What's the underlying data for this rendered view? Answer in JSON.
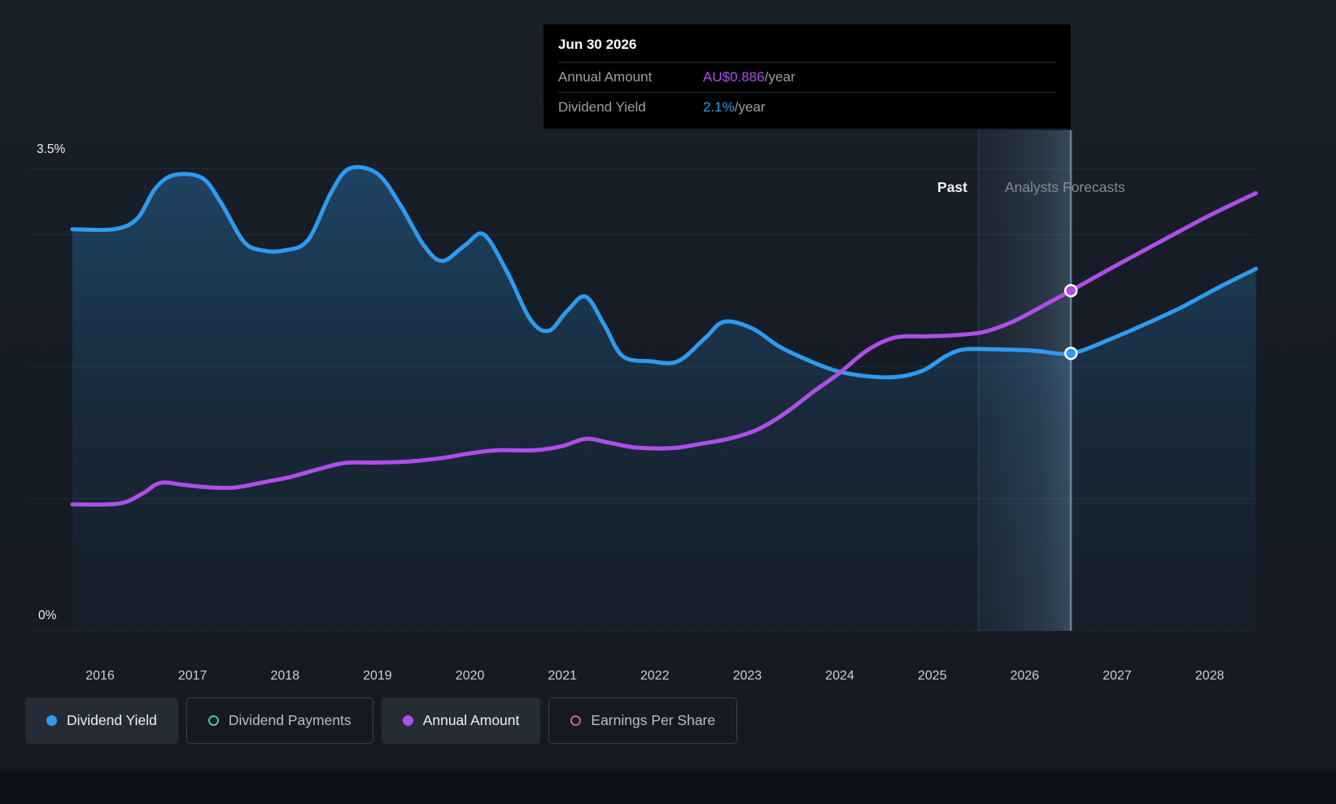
{
  "colors": {
    "background": "#161b23",
    "tooltip-bg": "#000000",
    "blue": "#2e9bf0",
    "purple": "#ae4fe8",
    "teal": "#45c8ba",
    "pink": "#e2559e",
    "text-primary": "#f0f3f5",
    "text-secondary": "#9aa0a8",
    "grid": "rgba(255,255,255,0.07)"
  },
  "tooltip": {
    "date": "Jun 30 2026",
    "rows": [
      {
        "label": "Annual Amount",
        "value": "AU$0.886",
        "suffix": "/year",
        "color_key": "purple"
      },
      {
        "label": "Dividend Yield",
        "value": "2.1%",
        "suffix": "/year",
        "color_key": "blue"
      }
    ]
  },
  "axis": {
    "y_top": "3.5%",
    "y_bottom": "0%"
  },
  "sections": {
    "past_label": "Past",
    "forecast_label": "Analysts Forecasts"
  },
  "legend": [
    {
      "label": "Dividend Yield",
      "marker": "filled",
      "color_key": "blue",
      "active": true
    },
    {
      "label": "Dividend Payments",
      "marker": "outline",
      "color_key": "teal",
      "active": false
    },
    {
      "label": "Annual Amount",
      "marker": "filled",
      "color_key": "purple",
      "active": true
    },
    {
      "label": "Earnings Per Share",
      "marker": "outline",
      "color_key": "pink",
      "active": false
    }
  ],
  "chart_data": {
    "type": "line",
    "x_range": [
      2015.7,
      2028.5
    ],
    "x_ticks": [
      2016,
      2017,
      2018,
      2019,
      2020,
      2021,
      2022,
      2023,
      2024,
      2025,
      2026,
      2027,
      2028
    ],
    "y_axis": {
      "unit": "%",
      "min": 0,
      "max": 3.5,
      "gridlines": [
        0,
        1,
        2,
        3,
        3.5
      ],
      "labeled_ticks": [
        "3.5%",
        "0%"
      ]
    },
    "past_until": 2025.5,
    "hover_x": 2026.5,
    "hover_date": "Jun 30 2026",
    "legend_position": "bottom",
    "series": [
      {
        "name": "Dividend Yield",
        "unit": "%",
        "color": "#2e9bf0",
        "area": true,
        "points": [
          [
            2015.7,
            3.04
          ],
          [
            2016.15,
            3.04
          ],
          [
            2016.4,
            3.12
          ],
          [
            2016.6,
            3.35
          ],
          [
            2016.8,
            3.45
          ],
          [
            2017.1,
            3.43
          ],
          [
            2017.3,
            3.25
          ],
          [
            2017.55,
            2.95
          ],
          [
            2017.75,
            2.88
          ],
          [
            2018.0,
            2.88
          ],
          [
            2018.25,
            2.96
          ],
          [
            2018.5,
            3.32
          ],
          [
            2018.7,
            3.5
          ],
          [
            2019.0,
            3.46
          ],
          [
            2019.25,
            3.22
          ],
          [
            2019.5,
            2.92
          ],
          [
            2019.7,
            2.8
          ],
          [
            2019.95,
            2.92
          ],
          [
            2020.15,
            3.0
          ],
          [
            2020.4,
            2.72
          ],
          [
            2020.65,
            2.36
          ],
          [
            2020.85,
            2.27
          ],
          [
            2021.05,
            2.42
          ],
          [
            2021.25,
            2.53
          ],
          [
            2021.45,
            2.32
          ],
          [
            2021.65,
            2.08
          ],
          [
            2021.95,
            2.04
          ],
          [
            2022.25,
            2.04
          ],
          [
            2022.55,
            2.22
          ],
          [
            2022.75,
            2.34
          ],
          [
            2023.05,
            2.29
          ],
          [
            2023.35,
            2.15
          ],
          [
            2023.65,
            2.05
          ],
          [
            2023.95,
            1.97
          ],
          [
            2024.25,
            1.93
          ],
          [
            2024.6,
            1.92
          ],
          [
            2024.9,
            1.97
          ],
          [
            2025.15,
            2.08
          ],
          [
            2025.35,
            2.13
          ],
          [
            2025.7,
            2.13
          ],
          [
            2026.1,
            2.12
          ],
          [
            2026.5,
            2.1
          ],
          [
            2026.9,
            2.2
          ],
          [
            2027.3,
            2.32
          ],
          [
            2027.7,
            2.45
          ],
          [
            2028.1,
            2.6
          ],
          [
            2028.5,
            2.74
          ]
        ]
      },
      {
        "name": "Annual Amount",
        "unit": "AU$ per year",
        "color": "#ae4fe8",
        "area": false,
        "pct_scale": 2.906,
        "points": [
          [
            2015.7,
            0.329
          ],
          [
            2016.2,
            0.331
          ],
          [
            2016.45,
            0.356
          ],
          [
            2016.65,
            0.385
          ],
          [
            2016.9,
            0.38
          ],
          [
            2017.15,
            0.374
          ],
          [
            2017.45,
            0.373
          ],
          [
            2017.75,
            0.386
          ],
          [
            2018.05,
            0.4
          ],
          [
            2018.35,
            0.42
          ],
          [
            2018.65,
            0.437
          ],
          [
            2019.0,
            0.438
          ],
          [
            2019.35,
            0.441
          ],
          [
            2019.7,
            0.45
          ],
          [
            2020.0,
            0.462
          ],
          [
            2020.3,
            0.47
          ],
          [
            2020.7,
            0.47
          ],
          [
            2021.0,
            0.481
          ],
          [
            2021.25,
            0.5
          ],
          [
            2021.5,
            0.49
          ],
          [
            2021.8,
            0.477
          ],
          [
            2022.2,
            0.476
          ],
          [
            2022.5,
            0.487
          ],
          [
            2022.8,
            0.5
          ],
          [
            2023.1,
            0.523
          ],
          [
            2023.4,
            0.565
          ],
          [
            2023.7,
            0.62
          ],
          [
            2024.0,
            0.672
          ],
          [
            2024.3,
            0.731
          ],
          [
            2024.6,
            0.764
          ],
          [
            2024.95,
            0.767
          ],
          [
            2025.25,
            0.77
          ],
          [
            2025.55,
            0.778
          ],
          [
            2025.85,
            0.803
          ],
          [
            2026.15,
            0.84
          ],
          [
            2026.5,
            0.886
          ],
          [
            2027.0,
            0.953
          ],
          [
            2027.5,
            1.018
          ],
          [
            2028.0,
            1.082
          ],
          [
            2028.5,
            1.14
          ]
        ]
      }
    ],
    "markers": [
      {
        "series": "Annual Amount",
        "x": 2026.5,
        "value": 0.886,
        "display": "AU$0.886/year"
      },
      {
        "series": "Dividend Yield",
        "x": 2026.5,
        "value": 2.1,
        "display": "2.1%/year"
      }
    ]
  }
}
